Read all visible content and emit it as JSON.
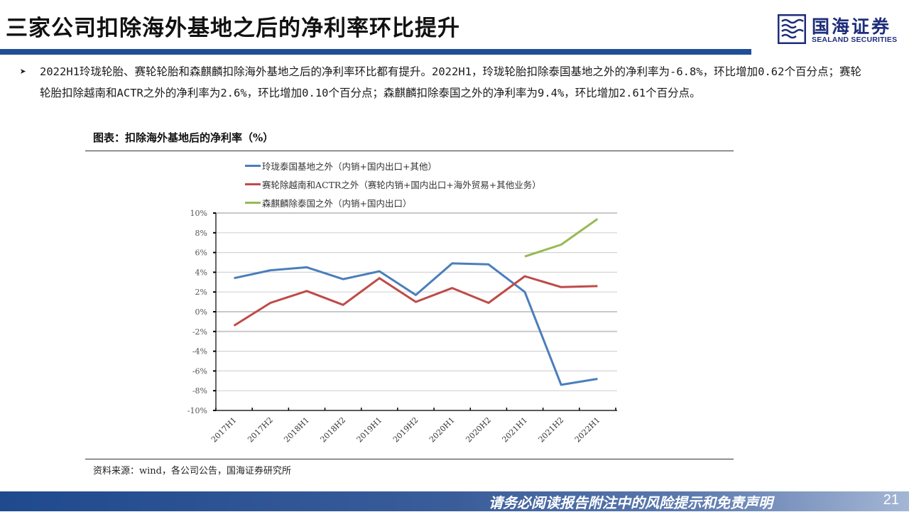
{
  "header": {
    "title": "三家公司扣除海外基地之后的净利率环比提升",
    "logo": {
      "cn": "国海证券",
      "en": "SEALAND SECURITIES",
      "icon": "sealand-wave-logo-icon"
    }
  },
  "bullet": {
    "icon": "arrow-bullet-icon",
    "text": "2022H1玲珑轮胎、赛轮轮胎和森麒麟扣除海外基地之后的净利率环比都有提升。2022H1，玲珑轮胎扣除泰国基地之外的净利率为-6.8%，环比增加0.62个百分点；赛轮轮胎扣除越南和ACTR之外的净利率为2.6%，环比增加0.10个百分点；森麒麟扣除泰国之外的净利率为9.4%，环比增加2.61个百分点。"
  },
  "chart_caption": "图表：扣除海外基地后的净利率（%）",
  "source": "资料来源：wind，各公司公告，国海证券研究所",
  "footer": {
    "disclaimer": "请务必阅读报告附注中的风险提示和免责声明",
    "page": "21"
  },
  "colors": {
    "blue": "#4a7ebb",
    "red": "#be4b48",
    "green": "#98b954",
    "brand": "#1f4e96"
  },
  "chart_data": {
    "type": "line",
    "title": "扣除海外基地后的净利率（%）",
    "xlabel": "",
    "ylabel": "",
    "categories": [
      "2017H1",
      "2017H2",
      "2018H1",
      "2018H2",
      "2019H1",
      "2019H2",
      "2020H1",
      "2020H2",
      "2021H1",
      "2021H2",
      "2022H1"
    ],
    "y_ticks": [
      "10%",
      "8%",
      "6%",
      "4%",
      "2%",
      "0%",
      "-2%",
      "-4%",
      "-6%",
      "-8%",
      "-10%"
    ],
    "ylim": [
      -10,
      10
    ],
    "grid": true,
    "legend_position": "top",
    "series": [
      {
        "name": "玲珑泰国基地之外（内销+国内出口+其他）",
        "color": "#4a7ebb",
        "values": [
          3.4,
          4.2,
          4.5,
          3.3,
          4.1,
          1.7,
          4.9,
          4.8,
          2.0,
          -7.4,
          -6.8
        ]
      },
      {
        "name": "赛轮除越南和ACTR之外（赛轮内销+国内出口+海外贸易+其他业务）",
        "color": "#be4b48",
        "values": [
          -1.4,
          0.9,
          2.1,
          0.7,
          3.4,
          1.0,
          2.4,
          0.9,
          3.6,
          2.5,
          2.6
        ]
      },
      {
        "name": "森麒麟除泰国之外（内销+国内出口）",
        "color": "#98b954",
        "values": [
          null,
          null,
          null,
          null,
          null,
          null,
          null,
          null,
          5.6,
          6.8,
          9.4
        ]
      }
    ]
  }
}
